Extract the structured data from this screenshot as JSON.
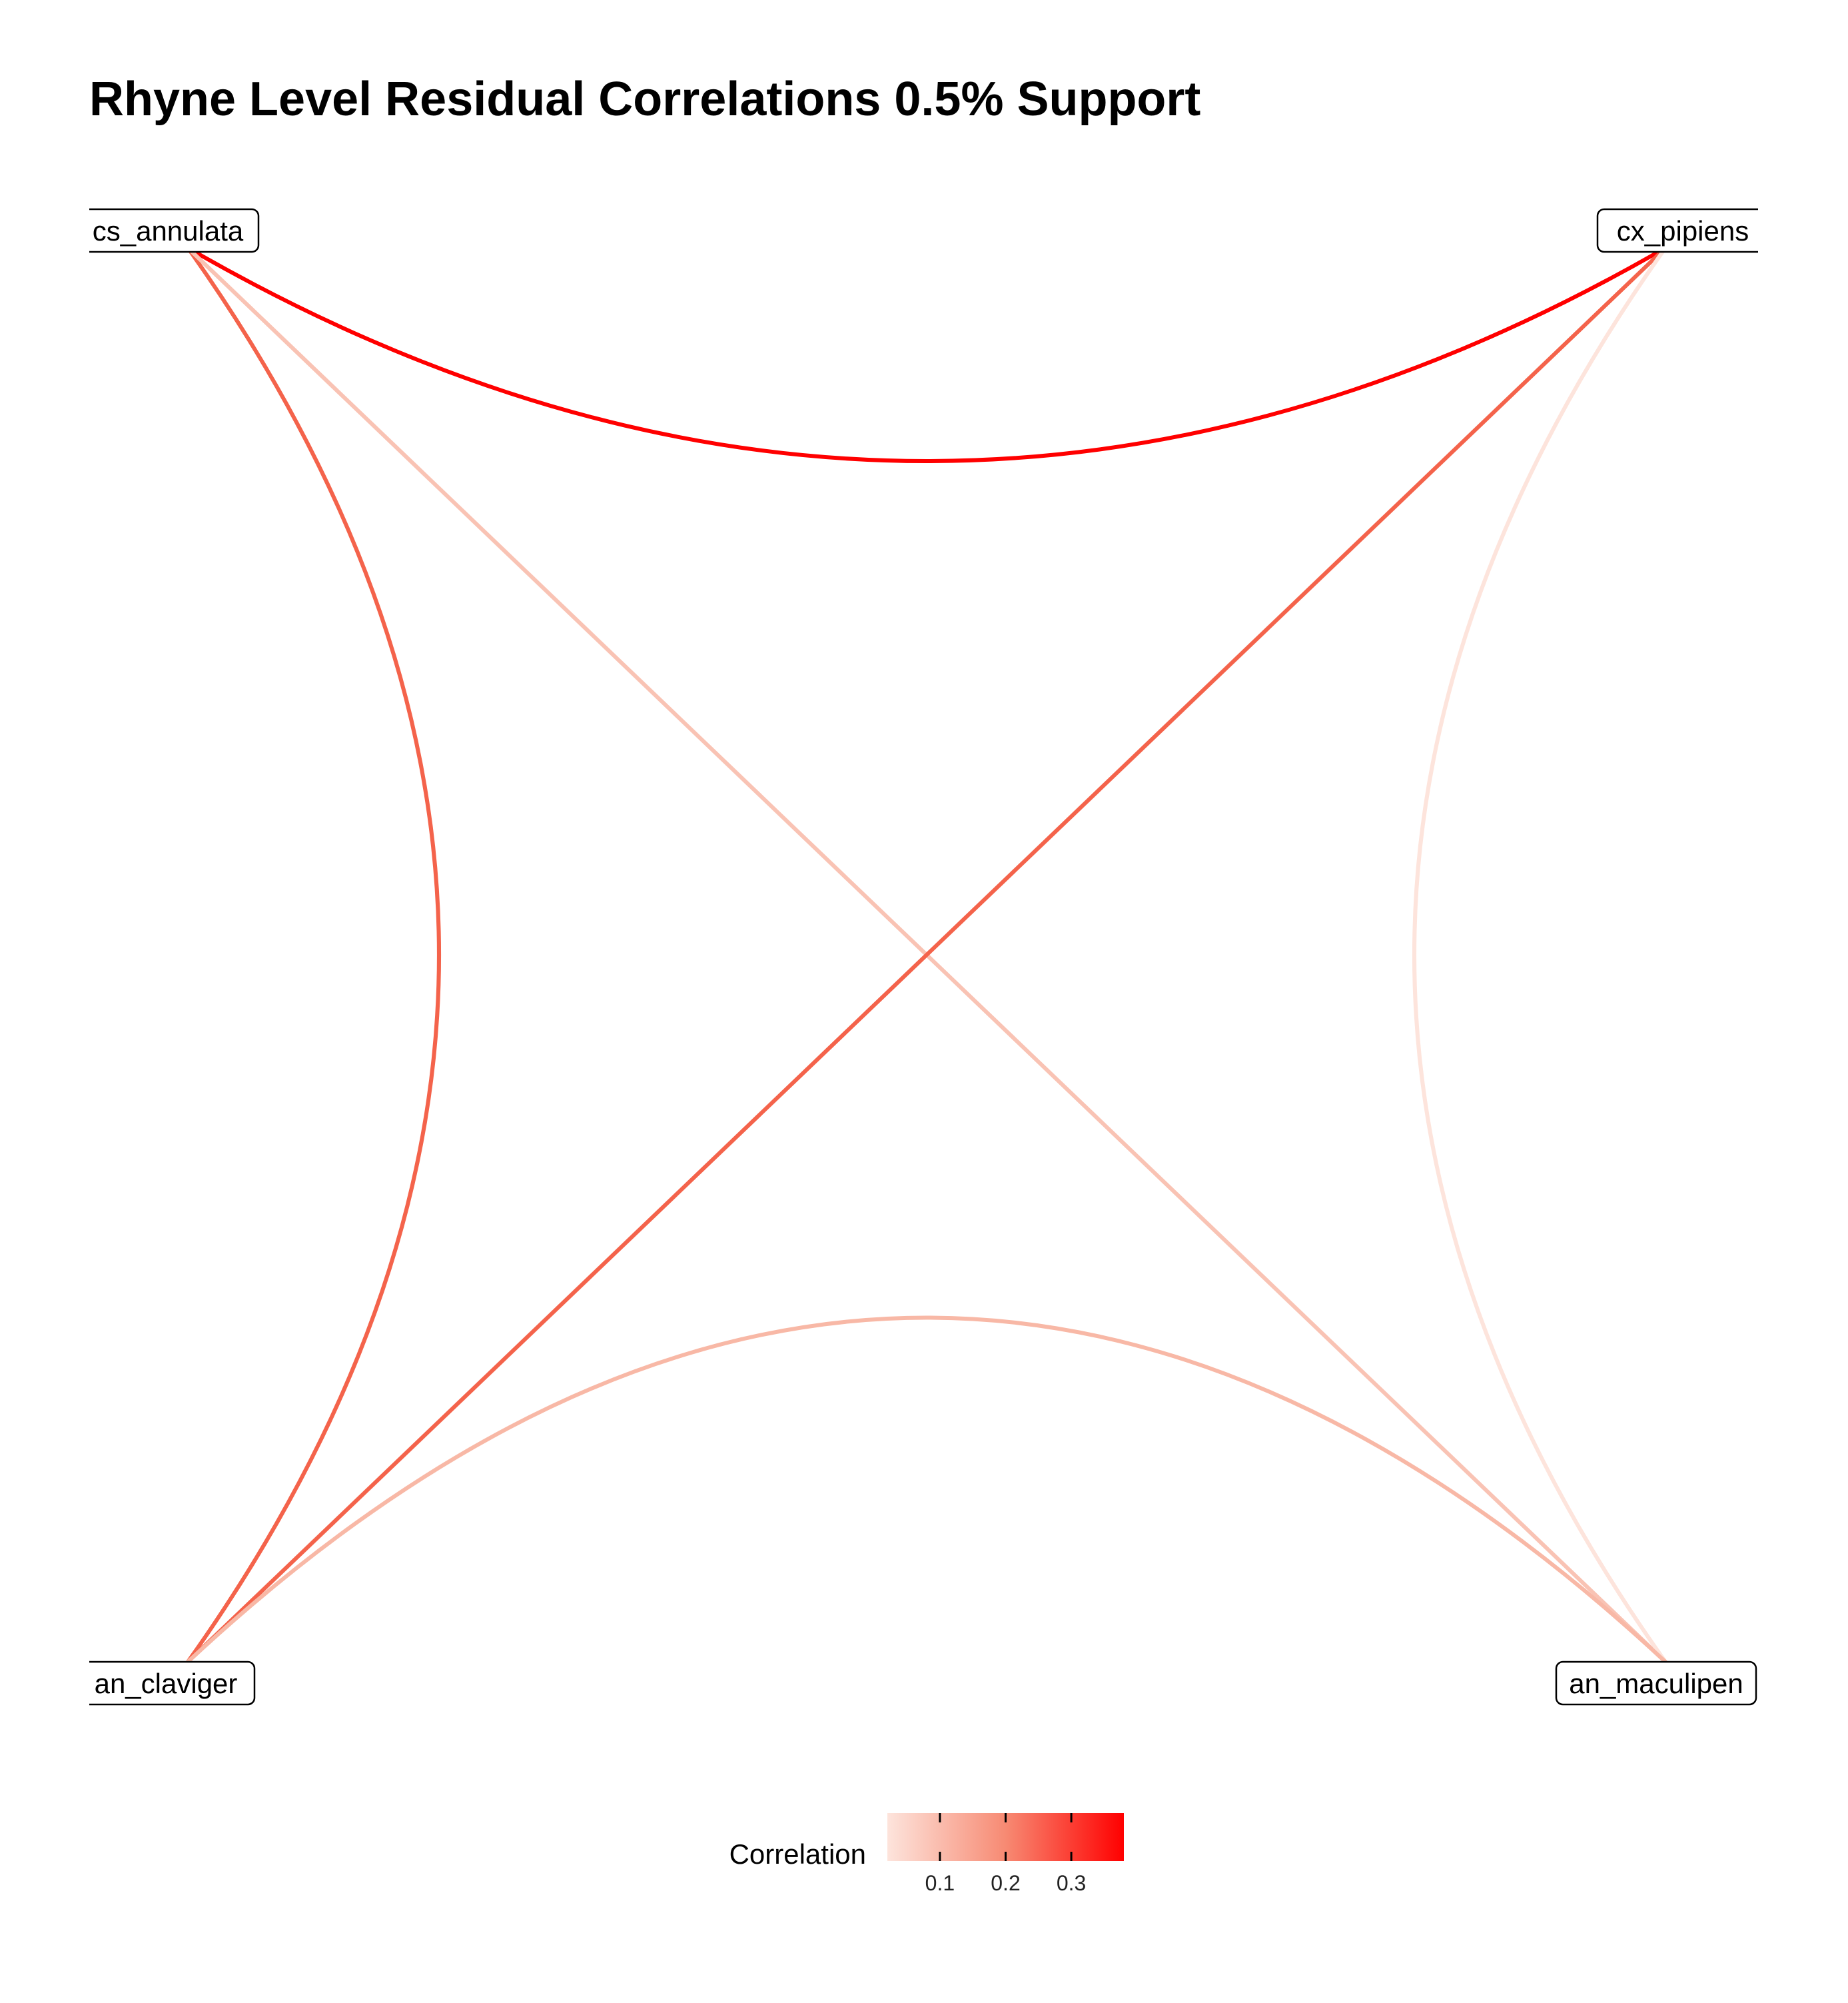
{
  "title": "Rhyne Level Residual Correlations 0.5% Support",
  "nodes": [
    {
      "id": "cs",
      "label": "cs_annulata",
      "corner": "top-left"
    },
    {
      "id": "cx",
      "label": "cx_pipiens",
      "corner": "top-right"
    },
    {
      "id": "cl",
      "label": "an_claviger",
      "corner": "bottom-left"
    },
    {
      "id": "ma",
      "label": "an_maculipen",
      "corner": "bottom-right"
    }
  ],
  "edges": [
    {
      "from": "cs",
      "to": "cx",
      "correlation": 0.38,
      "color": "#ff0000"
    },
    {
      "from": "cs",
      "to": "cl",
      "correlation": 0.27,
      "color": "#f4634b"
    },
    {
      "from": "cs",
      "to": "ma",
      "correlation": 0.11,
      "color": "#f9c3b4"
    },
    {
      "from": "cx",
      "to": "cl",
      "correlation": 0.27,
      "color": "#f4634b"
    },
    {
      "from": "cx",
      "to": "ma",
      "correlation": 0.05,
      "color": "#fde4dc"
    },
    {
      "from": "cl",
      "to": "ma",
      "correlation": 0.13,
      "color": "#f8b8a6"
    }
  ],
  "legend": {
    "title": "Correlation",
    "ticks": [
      0.1,
      0.2,
      0.3
    ],
    "tick_labels": [
      "0.1",
      "0.2",
      "0.3"
    ],
    "range": [
      0.02,
      0.38
    ],
    "color_low": "#fde4dc",
    "color_high": "#ff0000",
    "placement": "bottom"
  }
}
